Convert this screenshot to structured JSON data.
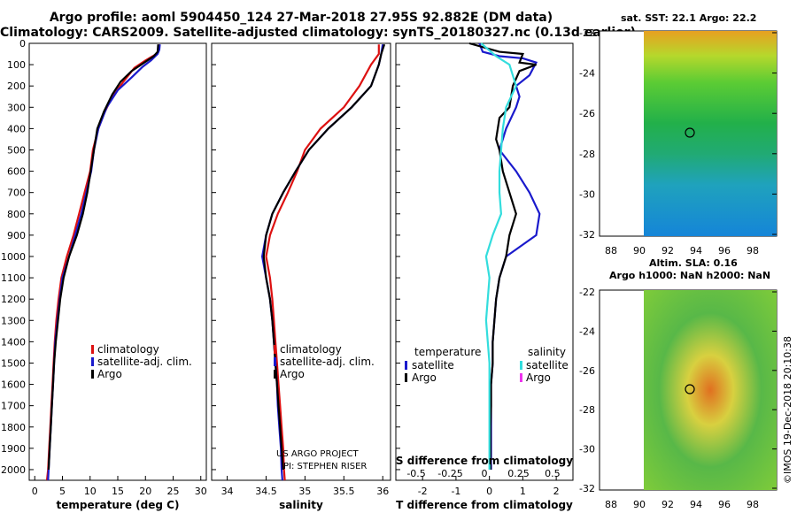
{
  "header": {
    "line1": "Argo profile: aoml 5904450_124 27-Mar-2018 27.95S 92.882E (DM data)",
    "line2": "Climatology: CARS2009. Satellite-adjusted climatology: synTS_20180327.nc (0.13d earlier)"
  },
  "colors": {
    "climatology": "#dd1111",
    "satellite": "#1a1acc",
    "argo": "#000000",
    "satellite_s": "#33dddd",
    "argo_s": "#ee33ee"
  },
  "credits": {
    "project": "US ARGO PROJECT",
    "pi": "PI: STEPHEN RISER"
  },
  "side_text": {
    "sst": "sat. SST: 22.1 Argo: 22.2",
    "sla_line1": "Altim. SLA: 0.16",
    "sla_line2": "Argo h1000: NaN h2000: NaN",
    "stamp": "©IMOS 19-Dec-2018 20:10:38"
  },
  "chart_data": [
    {
      "type": "line",
      "name": "temperature-profile",
      "xlabel": "temperature (deg C)",
      "ylabel": "",
      "xlim": [
        -1,
        31
      ],
      "ylim": [
        2050,
        0
      ],
      "xticks": [
        0,
        5,
        10,
        15,
        20,
        25,
        30
      ],
      "yticks": [
        0,
        100,
        200,
        300,
        400,
        500,
        600,
        700,
        800,
        900,
        1000,
        1100,
        1200,
        1300,
        1400,
        1500,
        1600,
        1700,
        1800,
        1900,
        2000
      ],
      "legend": [
        "climatology",
        "satellite-adj. clim.",
        "Argo"
      ],
      "series": [
        {
          "name": "climatology",
          "color": "#dd1111",
          "points": [
            [
              22.5,
              5
            ],
            [
              22.4,
              30
            ],
            [
              22,
              50
            ],
            [
              20,
              80
            ],
            [
              18,
              115
            ],
            [
              16,
              180
            ],
            [
              14,
              250
            ],
            [
              12.5,
              330
            ],
            [
              11.5,
              400
            ],
            [
              10.5,
              500
            ],
            [
              10,
              600
            ],
            [
              9,
              700
            ],
            [
              8,
              800
            ],
            [
              7,
              900
            ],
            [
              5.8,
              1000
            ],
            [
              4.8,
              1100
            ],
            [
              4.3,
              1200
            ],
            [
              3.9,
              1300
            ],
            [
              3.6,
              1400
            ],
            [
              3.4,
              1500
            ],
            [
              3.2,
              1600
            ],
            [
              3.0,
              1700
            ],
            [
              2.8,
              1800
            ],
            [
              2.6,
              1900
            ],
            [
              2.4,
              2000
            ],
            [
              2.2,
              2050
            ]
          ]
        },
        {
          "name": "satellite-adj. clim.",
          "color": "#1a1acc",
          "points": [
            [
              22.6,
              5
            ],
            [
              22.5,
              30
            ],
            [
              22.2,
              50
            ],
            [
              21,
              80
            ],
            [
              19.5,
              110
            ],
            [
              17.5,
              160
            ],
            [
              15,
              220
            ],
            [
              13,
              300
            ],
            [
              11.5,
              400
            ],
            [
              10.7,
              500
            ],
            [
              10.2,
              600
            ],
            [
              9.3,
              700
            ],
            [
              8.4,
              800
            ],
            [
              7.3,
              900
            ],
            [
              6.2,
              1000
            ],
            [
              5,
              1100
            ],
            [
              4.5,
              1200
            ],
            [
              4.1,
              1300
            ],
            [
              3.7,
              1400
            ],
            [
              3.5,
              1500
            ],
            [
              3.3,
              1600
            ],
            [
              3.1,
              1700
            ],
            [
              2.9,
              1800
            ],
            [
              2.7,
              1900
            ],
            [
              2.5,
              2000
            ],
            [
              2.4,
              2050
            ]
          ]
        },
        {
          "name": "Argo",
          "color": "#000000",
          "points": [
            [
              22.3,
              5
            ],
            [
              22.2,
              40
            ],
            [
              21.5,
              60
            ],
            [
              19.8,
              90
            ],
            [
              17.5,
              130
            ],
            [
              15.5,
              180
            ],
            [
              14,
              240
            ],
            [
              12.5,
              320
            ],
            [
              11.3,
              400
            ],
            [
              10.7,
              500
            ],
            [
              10.1,
              600
            ],
            [
              9.5,
              700
            ],
            [
              8.7,
              800
            ],
            [
              7.6,
              900
            ],
            [
              6.2,
              1000
            ],
            [
              5.2,
              1100
            ],
            [
              4.6,
              1200
            ],
            [
              4.2,
              1300
            ],
            [
              3.8,
              1400
            ],
            [
              3.5,
              1500
            ],
            [
              3.3,
              1600
            ],
            [
              3.1,
              1700
            ],
            [
              2.9,
              1800
            ],
            [
              2.7,
              1900
            ],
            [
              2.5,
              2000
            ]
          ]
        }
      ]
    },
    {
      "type": "line",
      "name": "salinity-profile",
      "xlabel": "salinity",
      "xlim": [
        33.8,
        36.1
      ],
      "ylim": [
        2050,
        0
      ],
      "xticks": [
        34,
        34.5,
        35,
        35.5,
        36
      ],
      "legend": [
        "climatology",
        "satellite-adj. clim.",
        "Argo"
      ],
      "series": [
        {
          "name": "climatology",
          "color": "#dd1111",
          "points": [
            [
              35.95,
              5
            ],
            [
              35.95,
              50
            ],
            [
              35.85,
              100
            ],
            [
              35.7,
              200
            ],
            [
              35.5,
              300
            ],
            [
              35.2,
              400
            ],
            [
              35,
              500
            ],
            [
              34.9,
              600
            ],
            [
              34.78,
              700
            ],
            [
              34.65,
              800
            ],
            [
              34.55,
              900
            ],
            [
              34.5,
              1000
            ],
            [
              34.55,
              1100
            ],
            [
              34.58,
              1200
            ],
            [
              34.6,
              1300
            ],
            [
              34.62,
              1400
            ],
            [
              34.64,
              1500
            ],
            [
              34.66,
              1600
            ],
            [
              34.68,
              1700
            ],
            [
              34.7,
              1800
            ],
            [
              34.72,
              1900
            ],
            [
              34.73,
              2000
            ],
            [
              34.74,
              2050
            ]
          ]
        },
        {
          "name": "satellite-adj. clim.",
          "color": "#1a1acc",
          "points": [
            [
              36,
              5
            ],
            [
              35.98,
              50
            ],
            [
              35.95,
              100
            ],
            [
              35.85,
              200
            ],
            [
              35.6,
              300
            ],
            [
              35.3,
              400
            ],
            [
              35.05,
              500
            ],
            [
              34.88,
              600
            ],
            [
              34.72,
              700
            ],
            [
              34.58,
              800
            ],
            [
              34.5,
              900
            ],
            [
              34.45,
              1000
            ],
            [
              34.5,
              1100
            ],
            [
              34.55,
              1200
            ],
            [
              34.58,
              1300
            ],
            [
              34.6,
              1400
            ],
            [
              34.62,
              1500
            ],
            [
              34.64,
              1600
            ],
            [
              34.65,
              1700
            ],
            [
              34.67,
              1800
            ],
            [
              34.69,
              1900
            ],
            [
              34.7,
              2000
            ],
            [
              34.71,
              2050
            ]
          ]
        },
        {
          "name": "Argo",
          "color": "#000000",
          "points": [
            [
              36.02,
              5
            ],
            [
              35.98,
              50
            ],
            [
              35.95,
              100
            ],
            [
              35.85,
              200
            ],
            [
              35.6,
              300
            ],
            [
              35.3,
              400
            ],
            [
              35.05,
              500
            ],
            [
              34.88,
              600
            ],
            [
              34.72,
              700
            ],
            [
              34.58,
              800
            ],
            [
              34.5,
              900
            ],
            [
              34.47,
              1000
            ],
            [
              34.5,
              1100
            ],
            [
              34.55,
              1200
            ],
            [
              34.58,
              1300
            ],
            [
              34.6,
              1400
            ],
            [
              34.62,
              1500
            ],
            [
              34.64,
              1600
            ],
            [
              34.66,
              1700
            ],
            [
              34.68,
              1800
            ],
            [
              34.7,
              1900
            ],
            [
              34.72,
              2000
            ]
          ]
        }
      ]
    },
    {
      "type": "line",
      "name": "difference-profile",
      "xlabel": "T difference from climatology",
      "top_xlabel": "S difference from climatology",
      "xlim": [
        -2.8,
        2.5
      ],
      "ylim": [
        2050,
        0
      ],
      "xticks": [
        -2,
        -1,
        0,
        1,
        2
      ],
      "top_ticks": [
        -0.5,
        -0.25,
        0,
        0.25,
        0.5
      ],
      "legend_temperature": {
        "heading": "temperature",
        "items": [
          "satellite",
          "Argo"
        ]
      },
      "legend_salinity": {
        "heading": "salinity",
        "items": [
          "satellite",
          "Argo"
        ]
      },
      "series": [
        {
          "name": "T satellite",
          "color": "#1a1acc",
          "points": [
            [
              -0.3,
              0
            ],
            [
              -0.2,
              40
            ],
            [
              0.3,
              60
            ],
            [
              1.0,
              70
            ],
            [
              1.4,
              90
            ],
            [
              1.2,
              150
            ],
            [
              0.8,
              200
            ],
            [
              0.9,
              250
            ],
            [
              0.8,
              300
            ],
            [
              0.5,
              400
            ],
            [
              0.3,
              500
            ],
            [
              0.8,
              600
            ],
            [
              1.2,
              700
            ],
            [
              1.5,
              800
            ],
            [
              1.4,
              900
            ],
            [
              0.5,
              1000
            ],
            [
              0.3,
              1100
            ],
            [
              0.2,
              1200
            ],
            [
              0.15,
              1300
            ],
            [
              0.1,
              1400
            ],
            [
              0.1,
              1500
            ],
            [
              0.05,
              1600
            ],
            [
              0.05,
              1700
            ],
            [
              0.05,
              1800
            ],
            [
              0.05,
              1900
            ],
            [
              0.05,
              2000
            ]
          ]
        },
        {
          "name": "T Argo",
          "color": "#000000",
          "points": [
            [
              -0.6,
              0
            ],
            [
              0.3,
              40
            ],
            [
              1.0,
              50
            ],
            [
              0.9,
              90
            ],
            [
              1.4,
              100
            ],
            [
              0.9,
              130
            ],
            [
              0.7,
              200
            ],
            [
              0.6,
              300
            ],
            [
              0.3,
              350
            ],
            [
              0.2,
              450
            ],
            [
              0.3,
              500
            ],
            [
              0.4,
              600
            ],
            [
              0.6,
              700
            ],
            [
              0.8,
              800
            ],
            [
              0.6,
              900
            ],
            [
              0.5,
              1000
            ],
            [
              0.3,
              1100
            ],
            [
              0.2,
              1200
            ],
            [
              0.15,
              1300
            ],
            [
              0.1,
              1400
            ],
            [
              0.1,
              1500
            ],
            [
              0.05,
              1600
            ],
            [
              0.05,
              1700
            ],
            [
              0.03,
              1800
            ],
            [
              0.03,
              1900
            ],
            [
              0.03,
              2000
            ]
          ]
        },
        {
          "name": "S satellite",
          "color": "#33dddd",
          "points": [
            [
              -0.25,
              0
            ],
            [
              0.2,
              60
            ],
            [
              0.6,
              100
            ],
            [
              0.8,
              200
            ],
            [
              0.5,
              300
            ],
            [
              0.4,
              400
            ],
            [
              0.35,
              500
            ],
            [
              0.3,
              600
            ],
            [
              0.3,
              700
            ],
            [
              0.35,
              800
            ],
            [
              0.1,
              900
            ],
            [
              -0.1,
              1000
            ],
            [
              0.0,
              1100
            ],
            [
              -0.05,
              1200
            ],
            [
              -0.1,
              1300
            ],
            [
              -0.05,
              1400
            ],
            [
              0.0,
              1500
            ],
            [
              0.0,
              1600
            ],
            [
              0.0,
              1700
            ],
            [
              0.0,
              1800
            ],
            [
              0.0,
              1900
            ],
            [
              0.0,
              2000
            ]
          ]
        }
      ]
    }
  ]
}
